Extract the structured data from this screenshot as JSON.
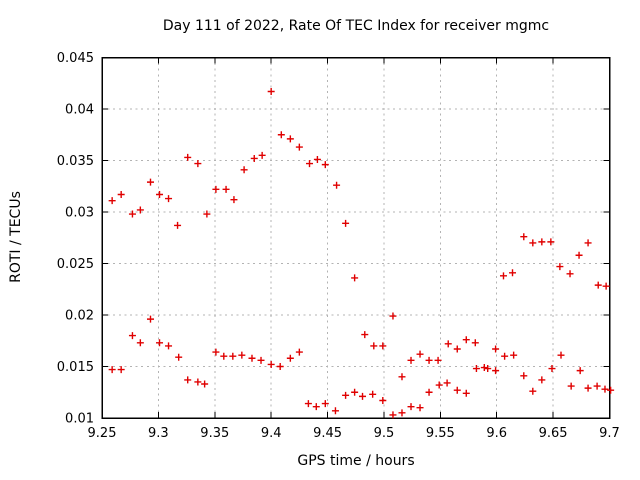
{
  "chart_data": {
    "type": "scatter",
    "title": "Day 111 of 2022, Rate Of TEC Index for receiver mgmc",
    "xlabel": "GPS time / hours",
    "ylabel": "ROTI / TECUs",
    "xlim": [
      9.25,
      9.7
    ],
    "ylim": [
      0.01,
      0.045
    ],
    "x_ticks": [
      9.25,
      9.3,
      9.35,
      9.4,
      9.45,
      9.5,
      9.55,
      9.6,
      9.65,
      9.7
    ],
    "y_ticks": [
      0.01,
      0.015,
      0.02,
      0.025,
      0.03,
      0.035,
      0.04,
      0.045
    ],
    "grid": true,
    "legend": "none",
    "marker": "plus",
    "marker_color": "#e00000",
    "grid_color": "#b3b3b3",
    "frame_color": "#000000",
    "points": [
      [
        9.259,
        0.0311
      ],
      [
        9.259,
        0.0147
      ],
      [
        9.267,
        0.0317
      ],
      [
        9.267,
        0.0147
      ],
      [
        9.277,
        0.0298
      ],
      [
        9.277,
        0.018
      ],
      [
        9.284,
        0.0302
      ],
      [
        9.284,
        0.0173
      ],
      [
        9.293,
        0.0329
      ],
      [
        9.293,
        0.0196
      ],
      [
        9.301,
        0.0317
      ],
      [
        9.301,
        0.0173
      ],
      [
        9.309,
        0.0313
      ],
      [
        9.309,
        0.017
      ],
      [
        9.317,
        0.0287
      ],
      [
        9.318,
        0.0159
      ],
      [
        9.326,
        0.0353
      ],
      [
        9.326,
        0.0137
      ],
      [
        9.335,
        0.0347
      ],
      [
        9.335,
        0.0135
      ],
      [
        9.343,
        0.0298
      ],
      [
        9.341,
        0.0133
      ],
      [
        9.351,
        0.0322
      ],
      [
        9.351,
        0.0164
      ],
      [
        9.36,
        0.0322
      ],
      [
        9.358,
        0.016
      ],
      [
        9.367,
        0.0312
      ],
      [
        9.366,
        0.016
      ],
      [
        9.376,
        0.0341
      ],
      [
        9.374,
        0.0161
      ],
      [
        9.385,
        0.0352
      ],
      [
        9.383,
        0.0158
      ],
      [
        9.392,
        0.0355
      ],
      [
        9.391,
        0.0156
      ],
      [
        9.4,
        0.0417
      ],
      [
        9.4,
        0.0152
      ],
      [
        9.409,
        0.0375
      ],
      [
        9.408,
        0.015
      ],
      [
        9.417,
        0.0371
      ],
      [
        9.417,
        0.0158
      ],
      [
        9.425,
        0.0363
      ],
      [
        9.425,
        0.0164
      ],
      [
        9.434,
        0.0347
      ],
      [
        9.433,
        0.0114
      ],
      [
        9.441,
        0.0351
      ],
      [
        9.44,
        0.0111
      ],
      [
        9.448,
        0.0346
      ],
      [
        9.448,
        0.0114
      ],
      [
        9.458,
        0.0326
      ],
      [
        9.457,
        0.0107
      ],
      [
        9.466,
        0.0289
      ],
      [
        9.466,
        0.0122
      ],
      [
        9.474,
        0.0236
      ],
      [
        9.474,
        0.0125
      ],
      [
        9.483,
        0.0181
      ],
      [
        9.481,
        0.0121
      ],
      [
        9.491,
        0.017
      ],
      [
        9.49,
        0.0123
      ],
      [
        9.499,
        0.017
      ],
      [
        9.499,
        0.0117
      ],
      [
        9.508,
        0.0199
      ],
      [
        9.508,
        0.0103
      ],
      [
        9.516,
        0.014
      ],
      [
        9.516,
        0.0105
      ],
      [
        9.524,
        0.0156
      ],
      [
        9.524,
        0.0111
      ],
      [
        9.532,
        0.0162
      ],
      [
        9.532,
        0.011
      ],
      [
        9.54,
        0.0156
      ],
      [
        9.54,
        0.0125
      ],
      [
        9.548,
        0.0156
      ],
      [
        9.549,
        0.0132
      ],
      [
        9.557,
        0.0172
      ],
      [
        9.556,
        0.0134
      ],
      [
        9.565,
        0.0167
      ],
      [
        9.565,
        0.0127
      ],
      [
        9.573,
        0.0176
      ],
      [
        9.573,
        0.0124
      ],
      [
        9.581,
        0.0173
      ],
      [
        9.582,
        0.0148
      ],
      [
        9.589,
        0.0149
      ],
      [
        9.592,
        0.0148
      ],
      [
        9.599,
        0.0167
      ],
      [
        9.599,
        0.0146
      ],
      [
        9.606,
        0.0238
      ],
      [
        9.607,
        0.016
      ],
      [
        9.614,
        0.0241
      ],
      [
        9.615,
        0.0161
      ],
      [
        9.624,
        0.0276
      ],
      [
        9.624,
        0.0141
      ],
      [
        9.632,
        0.027
      ],
      [
        9.632,
        0.0126
      ],
      [
        9.64,
        0.0271
      ],
      [
        9.64,
        0.0137
      ],
      [
        9.648,
        0.0271
      ],
      [
        9.649,
        0.0148
      ],
      [
        9.656,
        0.0247
      ],
      [
        9.657,
        0.0161
      ],
      [
        9.665,
        0.024
      ],
      [
        9.666,
        0.0131
      ],
      [
        9.673,
        0.0258
      ],
      [
        9.674,
        0.0146
      ],
      [
        9.681,
        0.027
      ],
      [
        9.681,
        0.0129
      ],
      [
        9.69,
        0.0229
      ],
      [
        9.689,
        0.0131
      ],
      [
        9.697,
        0.0228
      ],
      [
        9.696,
        0.0128
      ],
      [
        9.701,
        0.0127
      ]
    ]
  }
}
